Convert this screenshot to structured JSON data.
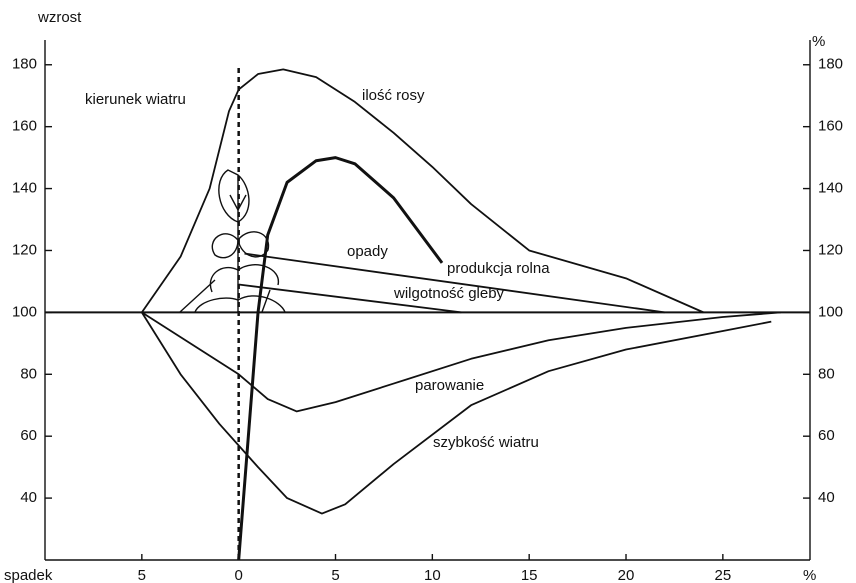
{
  "chart_data": {
    "type": "line",
    "y_label": "wzrost",
    "y2_label": "%",
    "x_label_left": "spadek",
    "x_label_right": "%",
    "xlim": [
      -10,
      29.5
    ],
    "xticks": [
      {
        "value": -5,
        "label": "5"
      },
      0,
      5,
      10,
      15,
      20,
      25
    ],
    "ylim": [
      20,
      188
    ],
    "yticks": [
      40,
      60,
      80,
      100,
      120,
      140,
      160,
      180
    ],
    "y2lim": [
      20,
      188
    ],
    "y2ticks": [
      40,
      60,
      80,
      100,
      120,
      140,
      160,
      180
    ],
    "reference_line": 100,
    "vline": 0,
    "annotations": [
      "kierunek wiatru",
      "ilość rosy",
      "opady",
      "produkcja rolna",
      "wilgotność gleby",
      "parowanie",
      "szybkość wiatru"
    ],
    "series": [
      {
        "name": "ilość rosy",
        "color": "#111111",
        "x": [
          -5,
          -3,
          -1.5,
          -0.5,
          0,
          1,
          2.3,
          4,
          6,
          8,
          10,
          12,
          15,
          20,
          24
        ],
        "values": [
          100,
          118,
          140,
          165,
          172,
          177,
          178.5,
          176,
          168,
          158,
          147,
          135,
          120,
          111,
          100
        ]
      },
      {
        "name": "produkcja rolna",
        "color": "#111111",
        "x": [
          0,
          0.5,
          1,
          1.5,
          2.5,
          4,
          5,
          6,
          8,
          10.5
        ],
        "values": [
          20,
          60,
          100,
          125,
          142,
          149,
          150,
          148,
          137,
          116
        ]
      },
      {
        "name": "opady",
        "color": "#111111",
        "x": [
          0.3,
          22
        ],
        "values": [
          119,
          100
        ]
      },
      {
        "name": "wilgotność gleby",
        "color": "#111111",
        "x": [
          0,
          11.5
        ],
        "values": [
          109,
          100
        ]
      },
      {
        "name": "parowanie",
        "color": "#111111",
        "x": [
          -5,
          -2,
          0,
          1.5,
          3,
          5,
          8,
          12,
          16,
          20,
          25,
          28
        ],
        "values": [
          100,
          88,
          80,
          72,
          68,
          71,
          77,
          85,
          91,
          95,
          98.5,
          100
        ]
      },
      {
        "name": "szybkość wiatru",
        "color": "#111111",
        "x": [
          -5,
          -3,
          -1,
          0,
          1,
          2.5,
          4.3,
          5.5,
          8,
          12,
          16,
          20,
          25,
          27.5
        ],
        "values": [
          100,
          80,
          64,
          57,
          50,
          40,
          35,
          38,
          51,
          70,
          81,
          88,
          94,
          97
        ]
      }
    ]
  }
}
